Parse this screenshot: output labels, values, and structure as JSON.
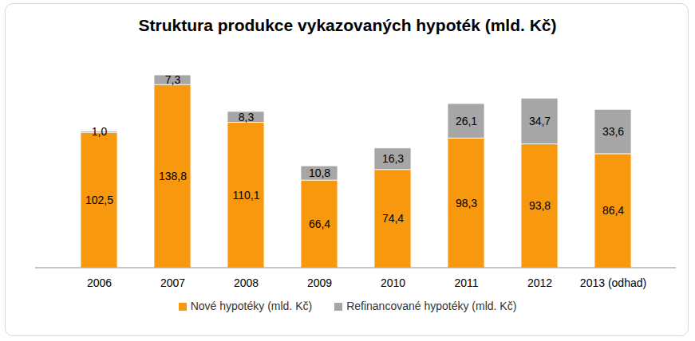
{
  "chart_data": {
    "type": "bar",
    "title": "Struktura produkce vykazovaných hypoték  (mld. Kč)",
    "categories": [
      "2006",
      "2007",
      "2008",
      "2009",
      "2010",
      "2011",
      "2012",
      "2013 (odhad)"
    ],
    "series": [
      {
        "name": "Nové hypotéky (mld. Kč)",
        "color": "#f7980f",
        "values": [
          102.5,
          138.8,
          110.1,
          66.4,
          74.4,
          98.3,
          93.8,
          86.4
        ],
        "value_labels": [
          "102,5",
          "138,8",
          "110,1",
          "66,4",
          "74,4",
          "98,3",
          "93,8",
          "86,4"
        ]
      },
      {
        "name": "Refinancované hypotéky (mld. Kč)",
        "color": "#a6a6a6",
        "values": [
          1.0,
          7.3,
          8.3,
          10.8,
          16.3,
          26.1,
          34.7,
          33.6
        ],
        "value_labels": [
          "1,0",
          "7,3",
          "8,3",
          "10,8",
          "16,3",
          "26,1",
          "34,7",
          "33,6"
        ]
      }
    ],
    "stacked": true,
    "data_labels": true,
    "tick_labels": "x",
    "legend": "bottom"
  }
}
